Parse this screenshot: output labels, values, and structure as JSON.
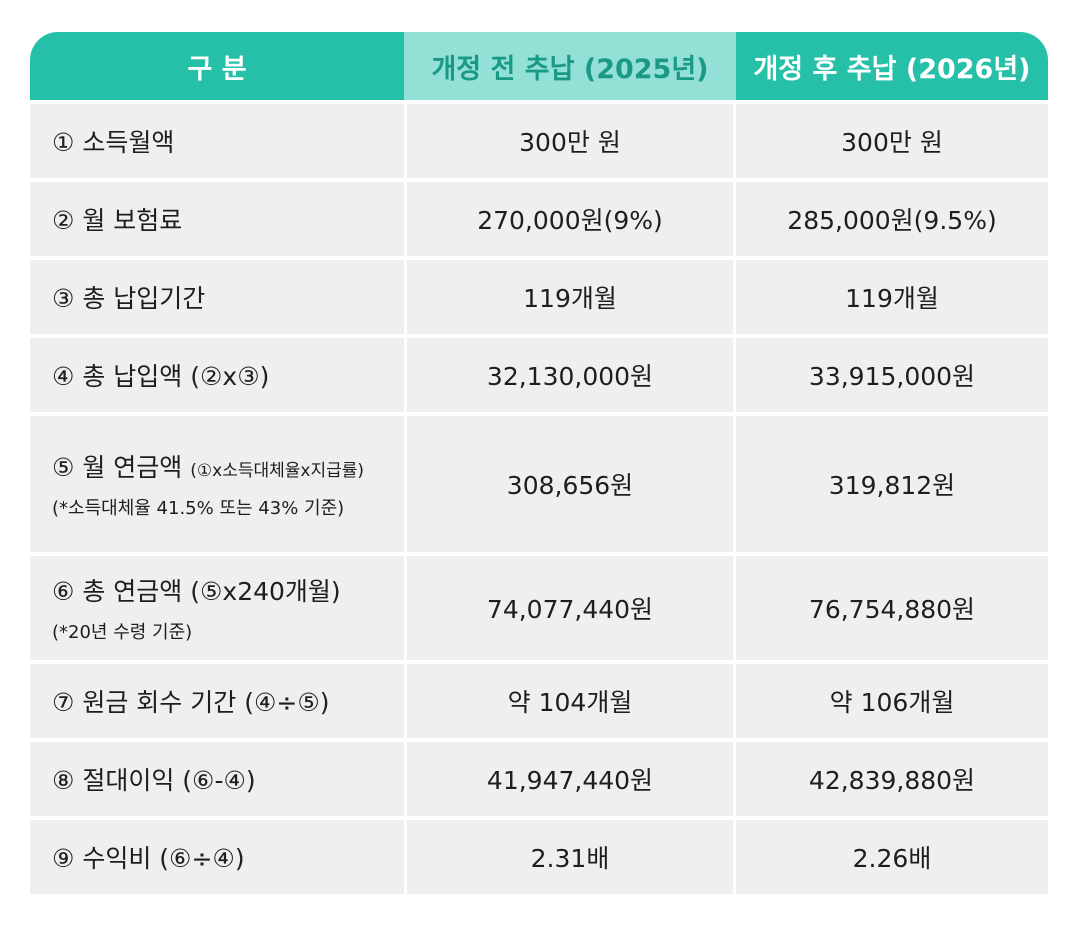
{
  "header": {
    "col1": "구 분",
    "col2": "개정 전 추납 (2025년)",
    "col3": "개정 후 추납 (2026년)"
  },
  "rows": [
    {
      "label": "① 소득월액",
      "before": "300만 원",
      "after": "300만 원"
    },
    {
      "label": "② 월 보험료",
      "before": "270,000원(9%)",
      "after": "285,000원(9.5%)"
    },
    {
      "label": "③ 총 납입기간",
      "before": "119개월",
      "after": "119개월"
    },
    {
      "label": "④ 총 납입액 (②x③)",
      "before": "32,130,000원",
      "after": "33,915,000원"
    },
    {
      "label": "⑤ 월 연금액",
      "label_small": "(①x소득대체율x지급률)",
      "note": "(*소득대체율 41.5% 또는 43% 기준)",
      "before": "308,656원",
      "after": "319,812원"
    },
    {
      "label": "⑥ 총 연금액 (⑤x240개월)",
      "note": "(*20년 수령 기준)",
      "before": "74,077,440원",
      "after": "76,754,880원"
    },
    {
      "label": "⑦ 원금 회수 기간 (④÷⑤)",
      "before": "약 104개월",
      "after": "약 106개월"
    },
    {
      "label": "⑧ 절대이익 (⑥-④)",
      "before": "41,947,440원",
      "after": "42,839,880원"
    },
    {
      "label": "⑨ 수익비 (⑥÷④)",
      "before": "2.31배",
      "after": "2.26배"
    }
  ]
}
